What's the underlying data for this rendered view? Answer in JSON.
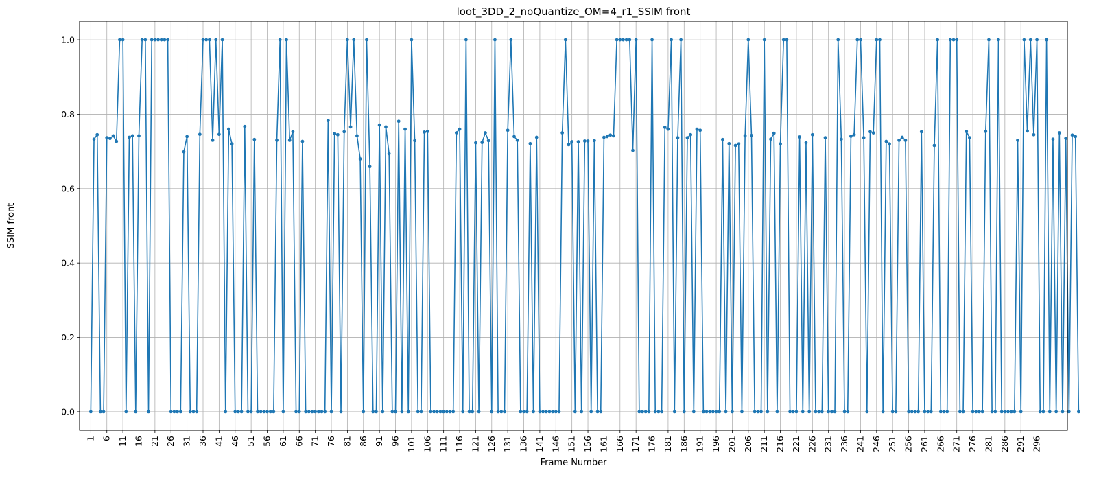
{
  "chart_data": {
    "type": "line",
    "title": "loot_3DD_2_noQuantize_OM=4_r1_SSIM front",
    "xlabel": "Frame Number",
    "ylabel": "SSIM front",
    "xlim": [
      -2.5,
      305.5
    ],
    "ylim": [
      -0.05,
      1.05
    ],
    "x_ticks": [
      1,
      6,
      11,
      16,
      21,
      26,
      31,
      36,
      41,
      46,
      51,
      56,
      61,
      66,
      71,
      76,
      81,
      86,
      91,
      96,
      101,
      106,
      111,
      116,
      121,
      126,
      131,
      136,
      141,
      146,
      151,
      156,
      161,
      166,
      171,
      176,
      181,
      186,
      191,
      196,
      201,
      206,
      211,
      216,
      221,
      226,
      231,
      236,
      241,
      246,
      251,
      256,
      261,
      266,
      271,
      276,
      281,
      286,
      291,
      296
    ],
    "y_ticks": [
      0.0,
      0.2,
      0.4,
      0.6,
      0.8,
      1.0
    ],
    "y_tick_labels": [
      "0.0",
      "0.2",
      "0.4",
      "0.6",
      "0.8",
      "1.0"
    ],
    "grid": true,
    "color": "#1f77b4",
    "series": [
      {
        "x_start": 1,
        "values": [
          0,
          0.733,
          0.745,
          0,
          0,
          0.737,
          0.735,
          0.742,
          0.727,
          1,
          1,
          0,
          0.738,
          0.742,
          0,
          0.742,
          1,
          1,
          0,
          1,
          1,
          1,
          1,
          1,
          1,
          0,
          0,
          0,
          0,
          0.699,
          0.74,
          0,
          0,
          0,
          0.746,
          1,
          1,
          1,
          0.73,
          1,
          0.746,
          1,
          0,
          0.76,
          0.72,
          0,
          0,
          0,
          0.767,
          0,
          0,
          0.732,
          0,
          0,
          0,
          0,
          0,
          0,
          0.73,
          1,
          0,
          1,
          0.73,
          0.753,
          0,
          0,
          0.727,
          0,
          0,
          0,
          0,
          0,
          0,
          0,
          0.783,
          0,
          0.748,
          0.745,
          0,
          0.753,
          1,
          0.766,
          1,
          0.742,
          0.68,
          0,
          1,
          0.659,
          0,
          0,
          0.771,
          0,
          0.766,
          0.694,
          0,
          0,
          0.781,
          0,
          0.76,
          0,
          1,
          0.729,
          0,
          0,
          0.752,
          0.754,
          0,
          0,
          0,
          0,
          0,
          0,
          0,
          0,
          0.75,
          0.76,
          0,
          1,
          0,
          0,
          0.723,
          0,
          0.724,
          0.75,
          0.729,
          0,
          1,
          0,
          0,
          0,
          0.757,
          1,
          0.74,
          0.73,
          0,
          0,
          0,
          0.721,
          0,
          0.738,
          0,
          0,
          0,
          0,
          0,
          0,
          0,
          0.75,
          1,
          0.718,
          0.726,
          0,
          0.726,
          0,
          0.728,
          0.728,
          0,
          0.729,
          0,
          0,
          0.738,
          0.74,
          0.744,
          0.742,
          1,
          1,
          1,
          1,
          1,
          0.703,
          1,
          0,
          0,
          0,
          0,
          1,
          0,
          0,
          0,
          0.765,
          0.76,
          1,
          0,
          0.737,
          1,
          0,
          0.737,
          0.745,
          0,
          0.76,
          0.757,
          0,
          0,
          0,
          0,
          0,
          0,
          0.732,
          0,
          0.721,
          0,
          0.716,
          0.72,
          0,
          0.742,
          1,
          0.743,
          0,
          0,
          0,
          1,
          0,
          0.733,
          0.749,
          0,
          0.72,
          1,
          1,
          0,
          0,
          0,
          0.739,
          0,
          0.723,
          0,
          0.745,
          0,
          0,
          0,
          0.737,
          0,
          0,
          0,
          1,
          0.733,
          0,
          0,
          0.741,
          0.745,
          1,
          1,
          0.737,
          0,
          0.753,
          0.75,
          1,
          1,
          0,
          0.727,
          0.72,
          0,
          0,
          0.73,
          0.738,
          0.73,
          0,
          0,
          0,
          0,
          0.753,
          0,
          0,
          0,
          0.716,
          1,
          0,
          0,
          0,
          1,
          1,
          1,
          0,
          0,
          0.754,
          0.737,
          0,
          0,
          0,
          0,
          0.754,
          1,
          0,
          0,
          1,
          0,
          0,
          0,
          0,
          0,
          0.73,
          0,
          1,
          0.755,
          1,
          0.745,
          1,
          0,
          0,
          1,
          0,
          0.733,
          0,
          0.75,
          0,
          0.735,
          0,
          0.744,
          0.74,
          0
        ]
      }
    ]
  }
}
